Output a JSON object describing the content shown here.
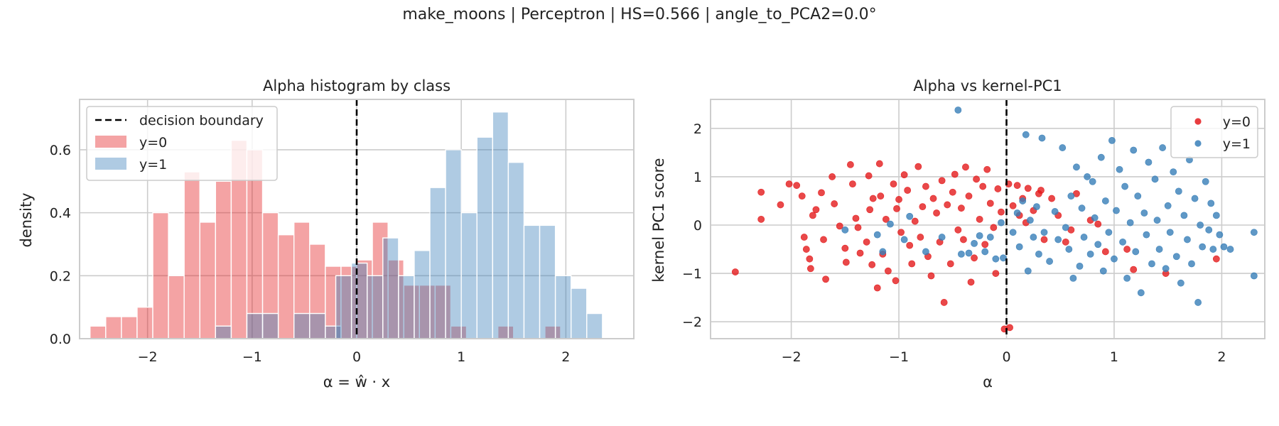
{
  "suptitle": "make_moons | Perceptron | HS=0.566 | angle_to_PCA2=0.0°",
  "colors": {
    "class0": "#e41a1c",
    "class1": "#377eb8",
    "grid": "#cccccc",
    "boundary": "#000000"
  },
  "chart_data": [
    {
      "type": "histogram",
      "title": "Alpha histogram by class",
      "xlabel": "α = ŵ · x",
      "ylabel": "density",
      "xlim": [
        -2.65,
        2.65
      ],
      "ylim": [
        0,
        0.76
      ],
      "xticks": [
        -2,
        -1,
        0,
        1,
        2
      ],
      "yticks": [
        0.0,
        0.2,
        0.4,
        0.6
      ],
      "grid": true,
      "legend": {
        "position": "top-left",
        "boundary_label": "decision boundary"
      },
      "decision_boundary_x": 0,
      "series": [
        {
          "name": "y=0",
          "bins": [
            [
              -2.55,
              -2.4,
              0.04
            ],
            [
              -2.4,
              -2.25,
              0.07
            ],
            [
              -2.25,
              -2.1,
              0.07
            ],
            [
              -2.1,
              -1.95,
              0.1
            ],
            [
              -1.95,
              -1.8,
              0.4
            ],
            [
              -1.8,
              -1.65,
              0.2
            ],
            [
              -1.65,
              -1.5,
              0.53
            ],
            [
              -1.5,
              -1.35,
              0.37
            ],
            [
              -1.35,
              -1.2,
              0.5
            ],
            [
              -1.2,
              -1.05,
              0.63
            ],
            [
              -1.05,
              -0.9,
              0.6
            ],
            [
              -0.9,
              -0.75,
              0.4
            ],
            [
              -0.75,
              -0.6,
              0.33
            ],
            [
              -0.6,
              -0.45,
              0.37
            ],
            [
              -0.45,
              -0.3,
              0.3
            ],
            [
              -0.3,
              -0.15,
              0.23
            ],
            [
              -0.15,
              0.0,
              0.23
            ],
            [
              0.0,
              0.15,
              0.25
            ],
            [
              0.15,
              0.3,
              0.37
            ],
            [
              0.3,
              0.45,
              0.25
            ],
            [
              0.45,
              0.6,
              0.17
            ],
            [
              0.6,
              0.75,
              0.17
            ],
            [
              0.75,
              0.9,
              0.17
            ],
            [
              0.9,
              1.05,
              0.04
            ],
            [
              1.35,
              1.5,
              0.04
            ],
            [
              1.8,
              1.95,
              0.04
            ]
          ]
        },
        {
          "name": "y=1",
          "bins": [
            [
              -1.35,
              -1.2,
              0.04
            ],
            [
              -1.05,
              -0.9,
              0.08
            ],
            [
              -0.9,
              -0.75,
              0.08
            ],
            [
              -0.6,
              -0.45,
              0.08
            ],
            [
              -0.45,
              -0.3,
              0.08
            ],
            [
              -0.3,
              -0.15,
              0.04
            ],
            [
              -0.2,
              -0.05,
              0.2
            ],
            [
              -0.05,
              0.1,
              0.24
            ],
            [
              0.1,
              0.25,
              0.2
            ],
            [
              0.25,
              0.4,
              0.32
            ],
            [
              0.4,
              0.55,
              0.2
            ],
            [
              0.55,
              0.7,
              0.28
            ],
            [
              0.7,
              0.85,
              0.48
            ],
            [
              0.85,
              1.0,
              0.6
            ],
            [
              1.0,
              1.15,
              0.4
            ],
            [
              1.15,
              1.3,
              0.64
            ],
            [
              1.3,
              1.45,
              0.72
            ],
            [
              1.45,
              1.6,
              0.56
            ],
            [
              1.6,
              1.75,
              0.36
            ],
            [
              1.75,
              1.9,
              0.36
            ],
            [
              1.9,
              2.05,
              0.2
            ],
            [
              2.05,
              2.2,
              0.16
            ],
            [
              2.2,
              2.35,
              0.08
            ]
          ]
        }
      ]
    },
    {
      "type": "scatter",
      "title": "Alpha vs kernel-PC1",
      "xlabel": "α",
      "ylabel": "kernel PC1 score",
      "xlim": [
        -2.75,
        2.4
      ],
      "ylim": [
        -2.35,
        2.6
      ],
      "xticks": [
        -2,
        -1,
        0,
        1,
        2
      ],
      "yticks": [
        -2,
        -1,
        0,
        1,
        2
      ],
      "grid": true,
      "legend": {
        "position": "top-right"
      },
      "decision_boundary_x": 0,
      "series": [
        {
          "name": "y=0",
          "points": [
            [
              -2.52,
              -0.97
            ],
            [
              -2.28,
              0.68
            ],
            [
              -2.28,
              0.12
            ],
            [
              -2.1,
              0.42
            ],
            [
              -2.02,
              0.85
            ],
            [
              -1.95,
              0.82
            ],
            [
              -1.9,
              0.6
            ],
            [
              -1.88,
              -0.25
            ],
            [
              -1.86,
              -0.5
            ],
            [
              -1.83,
              -0.7
            ],
            [
              -1.82,
              -0.9
            ],
            [
              -1.8,
              0.2
            ],
            [
              -1.77,
              0.32
            ],
            [
              -1.72,
              0.67
            ],
            [
              -1.7,
              -0.3
            ],
            [
              -1.68,
              -1.12
            ],
            [
              -1.62,
              1.0
            ],
            [
              -1.6,
              0.44
            ],
            [
              -1.55,
              -0.02
            ],
            [
              -1.5,
              -0.48
            ],
            [
              -1.49,
              -0.77
            ],
            [
              -1.45,
              1.25
            ],
            [
              -1.43,
              0.85
            ],
            [
              -1.4,
              0.14
            ],
            [
              -1.38,
              -0.05
            ],
            [
              -1.36,
              -0.58
            ],
            [
              -1.3,
              -0.35
            ],
            [
              -1.28,
              1.02
            ],
            [
              -1.27,
              0.32
            ],
            [
              -1.25,
              -0.82
            ],
            [
              -1.24,
              0.55
            ],
            [
              -1.2,
              -1.3
            ],
            [
              -1.18,
              1.27
            ],
            [
              -1.17,
              0.6
            ],
            [
              -1.15,
              -0.6
            ],
            [
              -1.12,
              0.12
            ],
            [
              -1.1,
              -0.95
            ],
            [
              -1.05,
              0.85
            ],
            [
              -1.03,
              -1.15
            ],
            [
              -1.02,
              0.34
            ],
            [
              -1.0,
              0.53
            ],
            [
              -0.98,
              -0.15
            ],
            [
              -0.95,
              1.04
            ],
            [
              -0.92,
              0.72
            ],
            [
              -0.9,
              -0.42
            ],
            [
              -0.88,
              -0.8
            ],
            [
              -0.85,
              0.08
            ],
            [
              -0.82,
              1.21
            ],
            [
              -0.8,
              -0.25
            ],
            [
              -0.78,
              0.38
            ],
            [
              -0.75,
              0.8
            ],
            [
              -0.73,
              -0.65
            ],
            [
              -0.7,
              -1.05
            ],
            [
              -0.68,
              0.55
            ],
            [
              -0.65,
              0.25
            ],
            [
              -0.62,
              -0.35
            ],
            [
              -0.6,
              0.92
            ],
            [
              -0.58,
              -1.6
            ],
            [
              -0.55,
              0.42
            ],
            [
              -0.52,
              -0.8
            ],
            [
              -0.5,
              0.68
            ],
            [
              -0.48,
              1.05
            ],
            [
              -0.45,
              -0.1
            ],
            [
              -0.42,
              0.35
            ],
            [
              -0.4,
              -0.3
            ],
            [
              -0.38,
              1.2
            ],
            [
              -0.35,
              0.6
            ],
            [
              -0.33,
              -1.18
            ],
            [
              -0.3,
              -0.68
            ],
            [
              -0.28,
              0.95
            ],
            [
              -0.25,
              0.12
            ],
            [
              -0.22,
              0.8
            ],
            [
              -0.2,
              -0.4
            ],
            [
              -0.18,
              1.15
            ],
            [
              -0.15,
              0.45
            ],
            [
              -0.12,
              -0.05
            ],
            [
              -0.1,
              -1.0
            ],
            [
              -0.08,
              0.75
            ],
            [
              -0.05,
              0.27
            ],
            [
              -0.02,
              -2.15
            ],
            [
              0.02,
              0.85
            ],
            [
              0.03,
              -2.12
            ],
            [
              0.06,
              0.4
            ],
            [
              0.1,
              0.82
            ],
            [
              0.12,
              0.2
            ],
            [
              0.15,
              0.55
            ],
            [
              0.18,
              0.05
            ],
            [
              0.2,
              0.76
            ],
            [
              0.25,
              0.3
            ],
            [
              0.3,
              0.65
            ],
            [
              0.32,
              0.72
            ],
            [
              0.35,
              -0.3
            ],
            [
              0.42,
              0.55
            ],
            [
              0.48,
              0.2
            ],
            [
              0.55,
              -0.35
            ],
            [
              0.6,
              -0.1
            ],
            [
              0.65,
              0.65
            ],
            [
              0.78,
              0.1
            ],
            [
              0.85,
              0.02
            ],
            [
              0.92,
              -0.55
            ],
            [
              1.12,
              -0.5
            ],
            [
              1.18,
              -0.92
            ],
            [
              1.48,
              -1.0
            ],
            [
              1.95,
              -0.7
            ]
          ]
        },
        {
          "name": "y=1",
          "points": [
            [
              -1.5,
              -0.1
            ],
            [
              -1.2,
              -0.2
            ],
            [
              -1.15,
              -0.55
            ],
            [
              -1.08,
              0.02
            ],
            [
              -0.95,
              -0.3
            ],
            [
              -0.9,
              0.18
            ],
            [
              -0.75,
              -0.55
            ],
            [
              -0.6,
              -0.25
            ],
            [
              -0.45,
              2.38
            ],
            [
              -0.42,
              -0.6
            ],
            [
              -0.35,
              -0.58
            ],
            [
              -0.3,
              -0.38
            ],
            [
              -0.25,
              -0.22
            ],
            [
              -0.2,
              -0.55
            ],
            [
              -0.15,
              -0.25
            ],
            [
              -0.1,
              -0.7
            ],
            [
              -0.05,
              0.05
            ],
            [
              -0.03,
              -0.68
            ],
            [
              0.06,
              -0.15
            ],
            [
              0.1,
              0.25
            ],
            [
              0.12,
              -0.45
            ],
            [
              0.15,
              0.5
            ],
            [
              0.18,
              1.87
            ],
            [
              0.2,
              -0.95
            ],
            [
              0.22,
              0.1
            ],
            [
              0.25,
              -0.25
            ],
            [
              0.28,
              0.38
            ],
            [
              0.3,
              -0.6
            ],
            [
              0.33,
              1.8
            ],
            [
              0.35,
              -0.15
            ],
            [
              0.4,
              -0.75
            ],
            [
              0.45,
              0.28
            ],
            [
              0.48,
              -0.3
            ],
            [
              0.52,
              1.6
            ],
            [
              0.55,
              -0.05
            ],
            [
              0.58,
              -0.5
            ],
            [
              0.6,
              0.6
            ],
            [
              0.62,
              -1.1
            ],
            [
              0.65,
              1.2
            ],
            [
              0.68,
              -0.85
            ],
            [
              0.7,
              0.35
            ],
            [
              0.72,
              -0.25
            ],
            [
              0.75,
              1.0
            ],
            [
              0.78,
              -0.6
            ],
            [
              0.8,
              0.9
            ],
            [
              0.82,
              0.15
            ],
            [
              0.85,
              -0.4
            ],
            [
              0.88,
              1.4
            ],
            [
              0.9,
              -0.95
            ],
            [
              0.92,
              0.5
            ],
            [
              0.95,
              -0.15
            ],
            [
              0.98,
              1.75
            ],
            [
              1.0,
              -0.7
            ],
            [
              1.02,
              0.3
            ],
            [
              1.05,
              1.15
            ],
            [
              1.08,
              -0.35
            ],
            [
              1.1,
              0.8
            ],
            [
              1.12,
              -1.1
            ],
            [
              1.15,
              0.05
            ],
            [
              1.18,
              1.55
            ],
            [
              1.2,
              -0.55
            ],
            [
              1.22,
              0.6
            ],
            [
              1.25,
              -1.4
            ],
            [
              1.28,
              0.25
            ],
            [
              1.3,
              -0.2
            ],
            [
              1.32,
              1.3
            ],
            [
              1.35,
              -0.8
            ],
            [
              1.38,
              0.95
            ],
            [
              1.4,
              0.1
            ],
            [
              1.42,
              -0.5
            ],
            [
              1.45,
              1.6
            ],
            [
              1.48,
              -0.9
            ],
            [
              1.5,
              0.4
            ],
            [
              1.52,
              -0.15
            ],
            [
              1.55,
              1.1
            ],
            [
              1.58,
              -0.65
            ],
            [
              1.6,
              0.7
            ],
            [
              1.62,
              -1.2
            ],
            [
              1.65,
              0.2
            ],
            [
              1.68,
              -0.3
            ],
            [
              1.7,
              1.35
            ],
            [
              1.72,
              -0.8
            ],
            [
              1.75,
              0.55
            ],
            [
              1.78,
              -1.6
            ],
            [
              1.8,
              0.0
            ],
            [
              1.82,
              -0.45
            ],
            [
              1.85,
              0.9
            ],
            [
              1.88,
              -0.1
            ],
            [
              1.9,
              0.45
            ],
            [
              1.92,
              -0.5
            ],
            [
              1.95,
              0.2
            ],
            [
              1.98,
              -0.2
            ],
            [
              2.02,
              -0.45
            ],
            [
              2.08,
              -0.5
            ],
            [
              2.3,
              -0.15
            ],
            [
              2.3,
              -1.05
            ]
          ]
        }
      ]
    }
  ]
}
